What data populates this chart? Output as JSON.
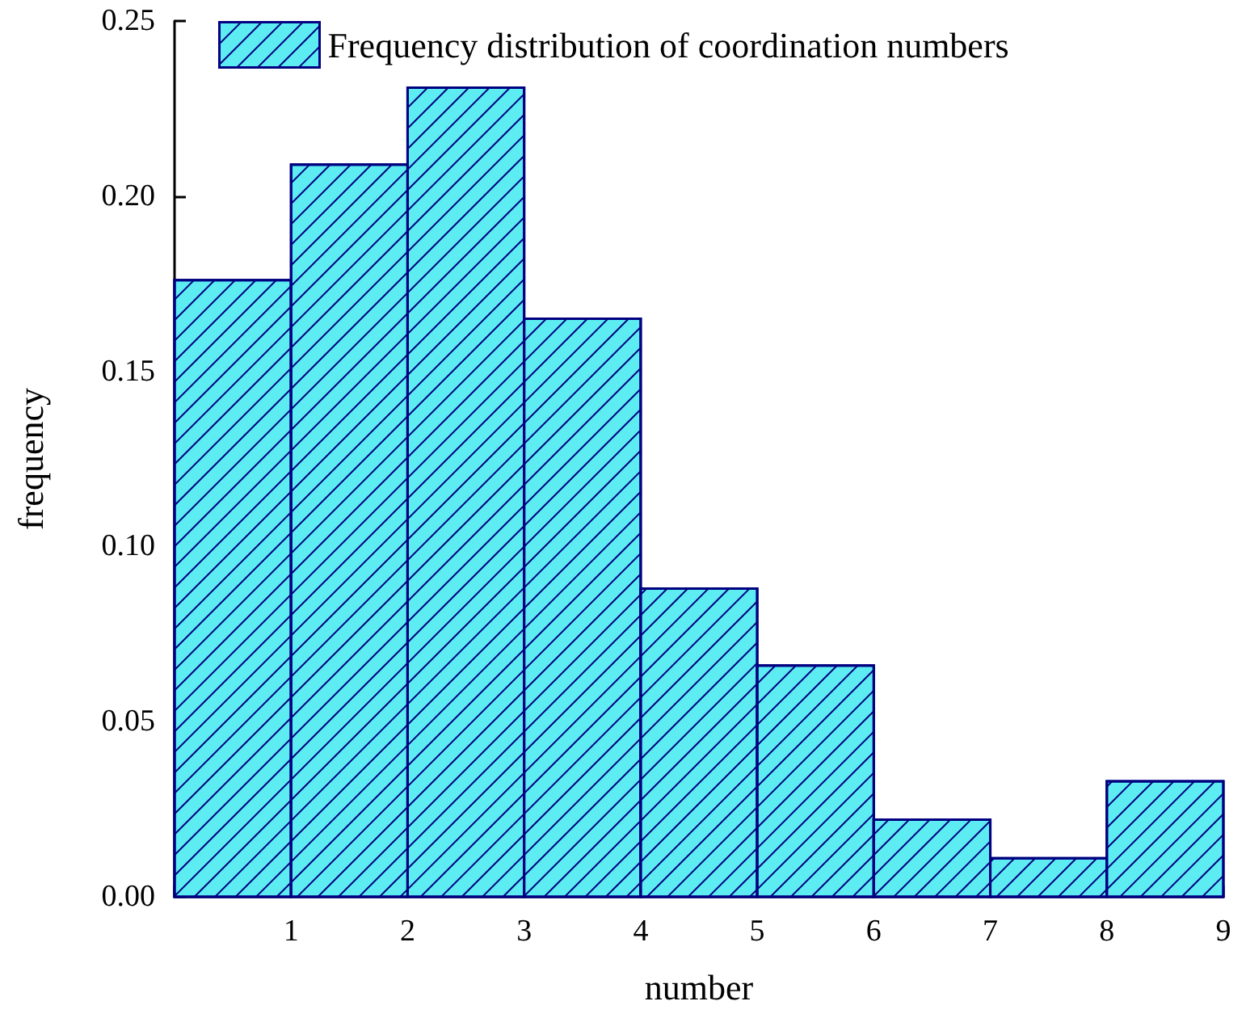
{
  "chart_data": {
    "type": "histogram",
    "xlabel": "number",
    "ylabel": "frequency",
    "bins": [
      0,
      1,
      2,
      3,
      4,
      5,
      6,
      7,
      8,
      9
    ],
    "series": [
      {
        "name": "Frequency distribution of coordination numbers",
        "color": "#5decf2",
        "values": [
          0.176,
          0.209,
          0.231,
          0.165,
          0.088,
          0.066,
          0.022,
          0.011,
          0.033
        ]
      }
    ],
    "xlim": [
      0,
      9
    ],
    "xticks": [
      {
        "value": 0,
        "label": null
      },
      1,
      2,
      3,
      4,
      5,
      6,
      7,
      8,
      9
    ],
    "ylim": [
      0,
      0.25
    ],
    "yticks": [
      {
        "value": 0,
        "label": "0.00"
      },
      {
        "value": 0.05,
        "label": "0.05"
      },
      {
        "value": 0.1,
        "label": "0.10"
      },
      {
        "value": 0.15,
        "label": "0.15"
      },
      {
        "value": 0.2,
        "label": "0.20"
      },
      {
        "value": 0.25,
        "label": "0.25"
      }
    ],
    "legend": "top",
    "grid": false
  }
}
